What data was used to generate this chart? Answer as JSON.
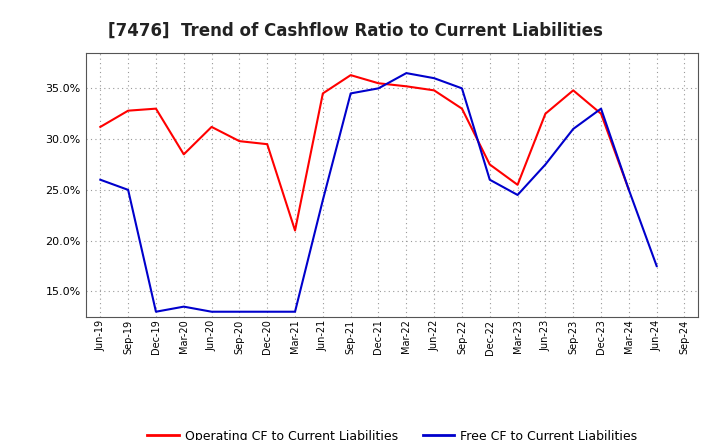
{
  "title": "[7476]  Trend of Cashflow Ratio to Current Liabilities",
  "x_labels": [
    "Jun-19",
    "Sep-19",
    "Dec-19",
    "Mar-20",
    "Jun-20",
    "Sep-20",
    "Dec-20",
    "Mar-21",
    "Jun-21",
    "Sep-21",
    "Dec-21",
    "Mar-22",
    "Jun-22",
    "Sep-22",
    "Dec-22",
    "Mar-23",
    "Jun-23",
    "Sep-23",
    "Dec-23",
    "Mar-24",
    "Jun-24",
    "Sep-24"
  ],
  "operating_cf": [
    31.2,
    32.8,
    33.0,
    28.5,
    31.2,
    29.8,
    29.5,
    21.0,
    34.5,
    36.3,
    35.5,
    35.2,
    34.8,
    33.0,
    27.5,
    25.5,
    32.5,
    34.8,
    32.5,
    25.0,
    null,
    null
  ],
  "free_cf": [
    26.0,
    25.0,
    13.0,
    13.5,
    13.0,
    13.0,
    13.0,
    13.0,
    24.0,
    34.5,
    35.0,
    36.5,
    36.0,
    35.0,
    26.0,
    24.5,
    27.5,
    31.0,
    33.0,
    25.0,
    17.5,
    null
  ],
  "ylim": [
    12.5,
    38.5
  ],
  "yticks": [
    15.0,
    20.0,
    25.0,
    30.0,
    35.0
  ],
  "operating_color": "#ff0000",
  "free_color": "#0000cc",
  "background_color": "#ffffff",
  "grid_color": "#999999",
  "title_fontsize": 12,
  "legend_labels": [
    "Operating CF to Current Liabilities",
    "Free CF to Current Liabilities"
  ]
}
